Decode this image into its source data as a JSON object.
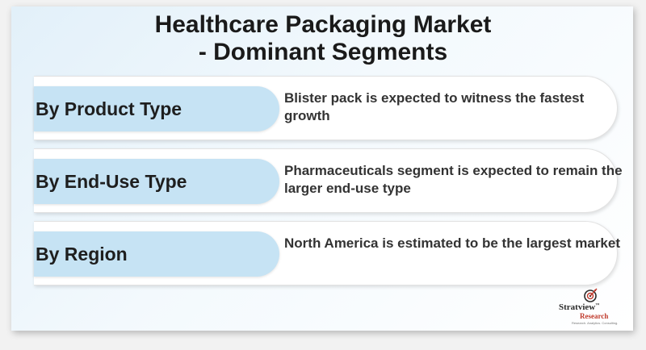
{
  "title": {
    "line1": "Healthcare Packaging Market",
    "line2": "- Dominant Segments"
  },
  "segments": [
    {
      "label": "By Product Type",
      "description": "Blister pack is expected to witness the fastest growth"
    },
    {
      "label": "By End-Use Type",
      "description": "Pharmaceuticals segment is expected to remain the larger end-use type"
    },
    {
      "label": "By Region",
      "description": "North America is estimated to be the largest market"
    }
  ],
  "logo": {
    "name": "Stratview",
    "trademark": "™",
    "subtitle": "Research",
    "tagline": "Research. Analytics. Consulting.",
    "icon": "target-arrow-icon"
  },
  "colors": {
    "pill": "#c6e3f4",
    "accent": "#c0392b"
  }
}
